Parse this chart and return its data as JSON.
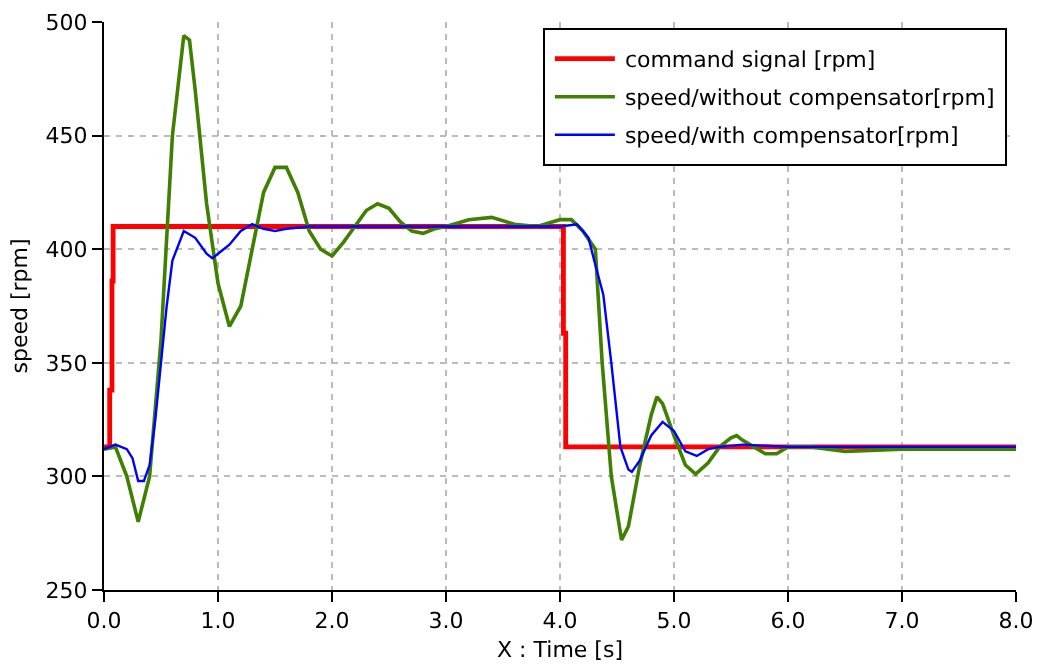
{
  "chart_data": {
    "type": "line",
    "xlabel": "X : Time [s]",
    "ylabel": "speed [rpm]",
    "xlim": [
      0,
      8
    ],
    "xticks": [
      {
        "value": 0,
        "label": "0.0"
      },
      {
        "value": 1,
        "label": "1.0"
      },
      {
        "value": 2,
        "label": "2.0"
      },
      {
        "value": 3,
        "label": "3.0"
      },
      {
        "value": 4,
        "label": "4.0"
      },
      {
        "value": 5,
        "label": "5.0"
      },
      {
        "value": 6,
        "label": "6.0"
      },
      {
        "value": 7,
        "label": "7.0"
      },
      {
        "value": 8,
        "label": "8.0"
      }
    ],
    "ylim": [
      250,
      500
    ],
    "yticks": [
      250,
      300,
      350,
      400,
      450,
      500
    ],
    "grid": true,
    "legend": "top right",
    "line_style": "solid",
    "marker": "none",
    "series": [
      {
        "name": "command signal [rpm]",
        "color": "#ff0000",
        "x": [
          0,
          0.05,
          0.05,
          0.07,
          0.07,
          0.08,
          0.08,
          4.03,
          4.03,
          4.05,
          4.05,
          8
        ],
        "values": [
          313,
          313,
          338,
          338,
          386,
          386,
          410,
          410,
          363,
          363,
          313,
          313
        ]
      },
      {
        "name": "speed/without compensator[rpm]",
        "color": "#408000",
        "x": [
          0,
          0.1,
          0.2,
          0.3,
          0.4,
          0.5,
          0.6,
          0.7,
          0.75,
          0.8,
          0.9,
          1.0,
          1.1,
          1.2,
          1.3,
          1.4,
          1.5,
          1.6,
          1.7,
          1.8,
          1.9,
          2.0,
          2.1,
          2.2,
          2.3,
          2.4,
          2.5,
          2.6,
          2.7,
          2.8,
          2.9,
          3.0,
          3.2,
          3.4,
          3.6,
          3.8,
          4.0,
          4.1,
          4.2,
          4.31,
          4.37,
          4.45,
          4.54,
          4.6,
          4.7,
          4.8,
          4.85,
          4.9,
          5.0,
          5.1,
          5.19,
          5.3,
          5.4,
          5.5,
          5.55,
          5.6,
          5.7,
          5.8,
          5.9,
          6.0,
          6.2,
          6.5,
          7.0,
          7.5,
          8.0
        ],
        "values": [
          312,
          313,
          300,
          280,
          300,
          360,
          450,
          494,
          492,
          470,
          420,
          385,
          366,
          375,
          400,
          425,
          436,
          436,
          425,
          408,
          400,
          397,
          403,
          410,
          417,
          420,
          418,
          412,
          408,
          407,
          409,
          410,
          413,
          414,
          411,
          410,
          413,
          413,
          408,
          400,
          350,
          300,
          272,
          278,
          305,
          327,
          335,
          332,
          318,
          305,
          301,
          306,
          313,
          317,
          318,
          316,
          313,
          310,
          310,
          313,
          313,
          311,
          312,
          312,
          312
        ]
      },
      {
        "name": "speed/with compensator[rpm]",
        "color": "#0000ff",
        "x": [
          0,
          0.1,
          0.2,
          0.25,
          0.3,
          0.35,
          0.4,
          0.45,
          0.5,
          0.55,
          0.6,
          0.7,
          0.8,
          0.9,
          0.95,
          1.0,
          1.1,
          1.2,
          1.3,
          1.4,
          1.5,
          1.6,
          1.8,
          2.0,
          2.5,
          3.0,
          3.5,
          4.0,
          4.15,
          4.25,
          4.3,
          4.38,
          4.45,
          4.53,
          4.6,
          4.63,
          4.7,
          4.8,
          4.9,
          5.0,
          5.1,
          5.2,
          5.3,
          5.4,
          5.6,
          6.0,
          7.0,
          8.0
        ],
        "values": [
          312,
          314,
          312,
          308,
          298,
          298,
          305,
          325,
          350,
          375,
          395,
          408,
          405,
          398,
          396,
          398,
          402,
          408,
          411,
          409,
          408,
          409,
          410,
          410,
          410,
          410,
          410,
          410,
          411,
          405,
          395,
          380,
          350,
          313,
          303,
          302,
          307,
          318,
          324,
          320,
          311,
          309,
          312,
          313,
          314,
          313,
          313,
          313
        ]
      }
    ]
  }
}
